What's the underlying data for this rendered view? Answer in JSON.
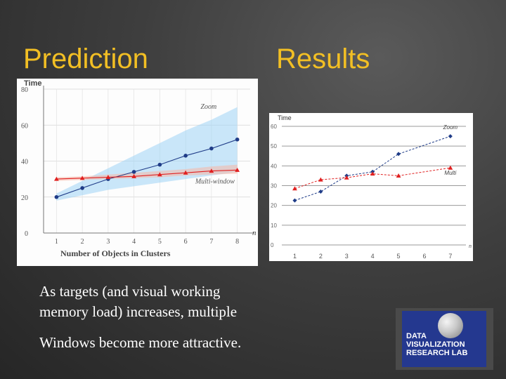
{
  "slide": {
    "title_left": "Prediction",
    "title_right": "Results",
    "body_lines": [
      "As targets (and visual working",
      "memory load) increases, multiple",
      "Windows become more attractive."
    ],
    "logo_lines": [
      "DATA",
      "VISUALIZATION",
      "RESEARCH LAB"
    ]
  },
  "colors": {
    "title": "#f2bf24",
    "zoom_series": "#1f3c88",
    "multi_series": "#e02020",
    "zoom_band": "#9fd4f5",
    "multi_band": "#f6b6a6"
  },
  "chart_data": [
    {
      "type": "line",
      "ylabel": "Time",
      "xlabel": "Number of Objects in Clusters",
      "x_axis_end_label": "n",
      "ylim": [
        0,
        80
      ],
      "xlim": [
        0.5,
        8.5
      ],
      "y_ticks": [
        0,
        20,
        40,
        60,
        80
      ],
      "x": [
        1,
        2,
        3,
        4,
        5,
        6,
        7,
        8
      ],
      "grid": true,
      "series": [
        {
          "name": "Zoom",
          "values": [
            20,
            25,
            30,
            34,
            38,
            43,
            47,
            52
          ],
          "band_upper": [
            22,
            29,
            36,
            43,
            50,
            57,
            63,
            70
          ],
          "band_lower": [
            18,
            21,
            24,
            26,
            28,
            30,
            32,
            34
          ],
          "color": "#1f3c88",
          "marker": "circle"
        },
        {
          "name": "Multi-window",
          "values": [
            30,
            30.5,
            31,
            31.5,
            32.5,
            33.5,
            34.5,
            35
          ],
          "band_upper": [
            31,
            31.5,
            32.5,
            33.5,
            34.5,
            35.5,
            37,
            38
          ],
          "band_lower": [
            29,
            29.5,
            30,
            30.5,
            31,
            32,
            32.5,
            33
          ],
          "color": "#e02020",
          "marker": "triangle"
        }
      ]
    },
    {
      "type": "line",
      "ylabel": "Time",
      "x_axis_end_label": "n",
      "ylim": [
        0,
        60
      ],
      "xlim": [
        0.5,
        7.6
      ],
      "y_ticks": [
        0,
        10,
        20,
        30,
        40,
        50,
        60
      ],
      "x": [
        1,
        2,
        3,
        4,
        5,
        6,
        7
      ],
      "grid": true,
      "series": [
        {
          "name": "Zoom",
          "x": [
            1,
            2,
            3,
            4,
            5,
            7
          ],
          "values": [
            22.5,
            27,
            35,
            37,
            46,
            55
          ],
          "color": "#1f3c88",
          "marker": "diamond"
        },
        {
          "name": "Multi",
          "x": [
            1,
            2,
            3,
            4,
            5,
            7
          ],
          "values": [
            28.5,
            33,
            34,
            36,
            35,
            39
          ],
          "color": "#e02020",
          "marker": "triangle"
        }
      ]
    }
  ]
}
